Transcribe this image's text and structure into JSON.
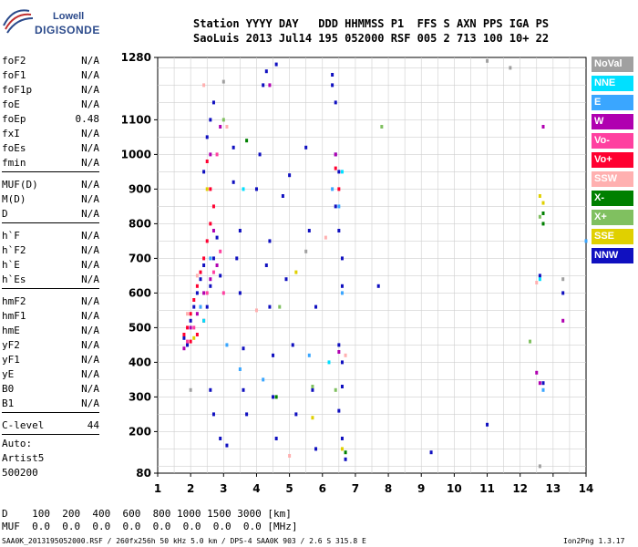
{
  "logo": {
    "line1": "Lowell",
    "line2": "DIGISONDE"
  },
  "header": {
    "row1": "Station YYYY DAY   DDD HHMMSS P1  FFS S AXN PPS IGA PS",
    "row2": "SaoLuis 2013 Jul14 195 052000 RSF 005 2 713 100 10+ 22"
  },
  "params": [
    {
      "group": 1,
      "name": "foF2",
      "value": "N/A"
    },
    {
      "group": 1,
      "name": "foF1",
      "value": "N/A"
    },
    {
      "group": 1,
      "name": "foF1p",
      "value": "N/A"
    },
    {
      "group": 1,
      "name": "foE",
      "value": "N/A"
    },
    {
      "group": 1,
      "name": "foEp",
      "value": "0.48"
    },
    {
      "group": 1,
      "name": "fxI",
      "value": "N/A"
    },
    {
      "group": 1,
      "name": "foEs",
      "value": "N/A"
    },
    {
      "group": 1,
      "name": "fmin",
      "value": "N/A"
    },
    {
      "group": 2,
      "name": "MUF(D)",
      "value": "N/A"
    },
    {
      "group": 2,
      "name": "M(D)",
      "value": "N/A"
    },
    {
      "group": 2,
      "name": "D",
      "value": "N/A"
    },
    {
      "group": 3,
      "name": "h`F",
      "value": "N/A"
    },
    {
      "group": 3,
      "name": "h`F2",
      "value": "N/A"
    },
    {
      "group": 3,
      "name": "h`E",
      "value": "N/A"
    },
    {
      "group": 3,
      "name": "h`Es",
      "value": "N/A"
    },
    {
      "group": 4,
      "name": "hmF2",
      "value": "N/A"
    },
    {
      "group": 4,
      "name": "hmF1",
      "value": "N/A"
    },
    {
      "group": 4,
      "name": "hmE",
      "value": "N/A"
    },
    {
      "group": 4,
      "name": "yF2",
      "value": "N/A"
    },
    {
      "group": 4,
      "name": "yF1",
      "value": "N/A"
    },
    {
      "group": 4,
      "name": "yE",
      "value": "N/A"
    },
    {
      "group": 4,
      "name": "B0",
      "value": "N/A"
    },
    {
      "group": 4,
      "name": "B1",
      "value": "N/A"
    },
    {
      "group": 5,
      "name": "C-level",
      "value": "44"
    }
  ],
  "auto": {
    "line1": "Auto:",
    "line2": "Artist5",
    "line3": "500200"
  },
  "bottom": {
    "d_row": "D    100  200  400  600  800 1000 1500 3000 [km]",
    "muf_row": "MUF  0.0  0.0  0.0  0.0  0.0  0.0  0.0  0.0 [MHz]",
    "footer_left": "SAA0K_2013195052000.RSF / 260fx256h 50 kHz 5.0 km / DPS-4 SAA0K 903 / 2.6 S 315.8 E",
    "footer_right": "Ion2Png 1.3.17"
  },
  "legend": [
    {
      "label": "NoVal",
      "color": "#a0a0a0"
    },
    {
      "label": "NNE",
      "color": "#00e0ff"
    },
    {
      "label": "E",
      "color": "#3aa6ff"
    },
    {
      "label": "W",
      "color": "#b000b0"
    },
    {
      "label": "Vo-",
      "color": "#ff40a0"
    },
    {
      "label": "Vo+",
      "color": "#ff0030"
    },
    {
      "label": "SSW",
      "color": "#ffb0b0"
    },
    {
      "label": "X-",
      "color": "#008000"
    },
    {
      "label": "X+",
      "color": "#80c060"
    },
    {
      "label": "SSE",
      "color": "#e0d000"
    },
    {
      "label": "NNW",
      "color": "#1010c0"
    }
  ],
  "chart_data": {
    "type": "scatter",
    "title": "",
    "xlabel": "",
    "ylabel": "",
    "xlim": [
      1,
      14
    ],
    "ylim": [
      80,
      1280
    ],
    "x_ticks": [
      "1",
      "2",
      "3",
      "4",
      "5",
      "6",
      "7",
      "8",
      "9",
      "10",
      "11",
      "12",
      "13",
      "14"
    ],
    "y_ticks": [
      "80",
      "200",
      "300",
      "400",
      "500",
      "600",
      "700",
      "800",
      "900",
      "1000",
      "1100",
      "1280"
    ],
    "grid": true,
    "series": [
      {
        "name": "NNW",
        "color": "#1010c0",
        "points": [
          [
            1.8,
            470
          ],
          [
            1.9,
            450
          ],
          [
            2.0,
            520
          ],
          [
            2.1,
            560
          ],
          [
            2.2,
            600
          ],
          [
            2.3,
            640
          ],
          [
            2.4,
            680
          ],
          [
            2.5,
            560
          ],
          [
            2.6,
            620
          ],
          [
            2.7,
            700
          ],
          [
            2.8,
            760
          ],
          [
            2.9,
            650
          ],
          [
            2.5,
            1050
          ],
          [
            2.6,
            1100
          ],
          [
            2.7,
            1150
          ],
          [
            2.4,
            950
          ],
          [
            2.6,
            320
          ],
          [
            2.7,
            250
          ],
          [
            2.9,
            180
          ],
          [
            3.1,
            160
          ],
          [
            3.3,
            1020
          ],
          [
            3.3,
            920
          ],
          [
            3.4,
            700
          ],
          [
            3.5,
            600
          ],
          [
            3.5,
            780
          ],
          [
            3.6,
            440
          ],
          [
            3.6,
            320
          ],
          [
            3.7,
            250
          ],
          [
            4.0,
            900
          ],
          [
            4.1,
            1000
          ],
          [
            4.2,
            1200
          ],
          [
            4.3,
            1240
          ],
          [
            4.3,
            680
          ],
          [
            4.4,
            750
          ],
          [
            4.4,
            560
          ],
          [
            4.5,
            420
          ],
          [
            4.5,
            300
          ],
          [
            4.6,
            180
          ],
          [
            4.6,
            1260
          ],
          [
            4.8,
            880
          ],
          [
            4.9,
            640
          ],
          [
            5.0,
            940
          ],
          [
            5.1,
            450
          ],
          [
            5.2,
            250
          ],
          [
            5.5,
            1020
          ],
          [
            5.6,
            780
          ],
          [
            5.8,
            560
          ],
          [
            5.7,
            320
          ],
          [
            5.8,
            150
          ],
          [
            6.3,
            1230
          ],
          [
            6.3,
            1200
          ],
          [
            6.4,
            1150
          ],
          [
            6.4,
            1000
          ],
          [
            6.5,
            950
          ],
          [
            6.4,
            850
          ],
          [
            6.5,
            780
          ],
          [
            6.6,
            700
          ],
          [
            6.6,
            620
          ],
          [
            6.5,
            450
          ],
          [
            6.6,
            400
          ],
          [
            6.6,
            330
          ],
          [
            6.5,
            260
          ],
          [
            6.6,
            180
          ],
          [
            6.7,
            120
          ],
          [
            7.7,
            620
          ],
          [
            9.3,
            140
          ],
          [
            11.0,
            220
          ],
          [
            12.6,
            650
          ],
          [
            12.7,
            340
          ],
          [
            13.3,
            600
          ]
        ]
      },
      {
        "name": "Vo+",
        "color": "#ff0030",
        "points": [
          [
            1.8,
            480
          ],
          [
            1.9,
            500
          ],
          [
            2.0,
            540
          ],
          [
            2.1,
            580
          ],
          [
            2.2,
            620
          ],
          [
            2.3,
            660
          ],
          [
            2.4,
            700
          ],
          [
            2.5,
            750
          ],
          [
            2.6,
            800
          ],
          [
            2.7,
            850
          ],
          [
            2.6,
            900
          ],
          [
            2.5,
            980
          ],
          [
            2.4,
            520
          ],
          [
            2.2,
            480
          ],
          [
            2.0,
            460
          ],
          [
            6.4,
            960
          ],
          [
            6.5,
            900
          ]
        ]
      },
      {
        "name": "W",
        "color": "#b000b0",
        "points": [
          [
            1.8,
            440
          ],
          [
            2.0,
            500
          ],
          [
            2.2,
            540
          ],
          [
            2.4,
            600
          ],
          [
            2.6,
            640
          ],
          [
            2.8,
            680
          ],
          [
            2.7,
            780
          ],
          [
            2.6,
            1000
          ],
          [
            2.9,
            1080
          ],
          [
            4.4,
            1200
          ],
          [
            6.4,
            1000
          ],
          [
            6.5,
            430
          ],
          [
            12.5,
            370
          ],
          [
            12.6,
            340
          ],
          [
            12.7,
            1080
          ],
          [
            13.3,
            520
          ]
        ]
      },
      {
        "name": "Vo-",
        "color": "#ff40a0",
        "points": [
          [
            1.9,
            460
          ],
          [
            2.1,
            500
          ],
          [
            2.3,
            560
          ],
          [
            2.5,
            600
          ],
          [
            2.7,
            660
          ],
          [
            2.9,
            720
          ],
          [
            3.0,
            600
          ],
          [
            2.8,
            1000
          ]
        ]
      },
      {
        "name": "E",
        "color": "#3aa6ff",
        "points": [
          [
            2.3,
            560
          ],
          [
            2.6,
            700
          ],
          [
            3.1,
            450
          ],
          [
            3.5,
            380
          ],
          [
            4.2,
            350
          ],
          [
            5.6,
            420
          ],
          [
            6.3,
            900
          ],
          [
            6.5,
            850
          ],
          [
            6.6,
            600
          ],
          [
            12.7,
            320
          ],
          [
            14.0,
            750
          ]
        ]
      },
      {
        "name": "NNE",
        "color": "#00e0ff",
        "points": [
          [
            2.4,
            520
          ],
          [
            3.6,
            900
          ],
          [
            6.2,
            400
          ],
          [
            6.6,
            950
          ],
          [
            12.6,
            640
          ]
        ]
      },
      {
        "name": "X-",
        "color": "#008000",
        "points": [
          [
            3.7,
            1040
          ],
          [
            4.6,
            300
          ],
          [
            6.7,
            140
          ],
          [
            12.7,
            830
          ],
          [
            12.7,
            800
          ]
        ]
      },
      {
        "name": "X+",
        "color": "#80c060",
        "points": [
          [
            3.0,
            1100
          ],
          [
            4.7,
            560
          ],
          [
            5.7,
            330
          ],
          [
            6.4,
            320
          ],
          [
            7.8,
            1080
          ],
          [
            12.3,
            460
          ],
          [
            12.6,
            820
          ]
        ]
      },
      {
        "name": "SSE",
        "color": "#e0d000",
        "points": [
          [
            2.1,
            470
          ],
          [
            2.5,
            900
          ],
          [
            5.2,
            660
          ],
          [
            5.7,
            240
          ],
          [
            6.6,
            150
          ],
          [
            12.6,
            880
          ],
          [
            12.7,
            860
          ]
        ]
      },
      {
        "name": "SSW",
        "color": "#ffb0b0",
        "points": [
          [
            1.9,
            540
          ],
          [
            2.2,
            650
          ],
          [
            2.4,
            1200
          ],
          [
            3.1,
            1080
          ],
          [
            4.0,
            550
          ],
          [
            5.0,
            130
          ],
          [
            6.1,
            760
          ],
          [
            6.7,
            420
          ],
          [
            12.5,
            630
          ]
        ]
      },
      {
        "name": "NoVal",
        "color": "#a0a0a0",
        "points": [
          [
            2.0,
            320
          ],
          [
            3.0,
            1210
          ],
          [
            5.5,
            720
          ],
          [
            11.0,
            1270
          ],
          [
            11.7,
            1250
          ],
          [
            12.6,
            100
          ],
          [
            13.3,
            640
          ]
        ]
      }
    ]
  }
}
